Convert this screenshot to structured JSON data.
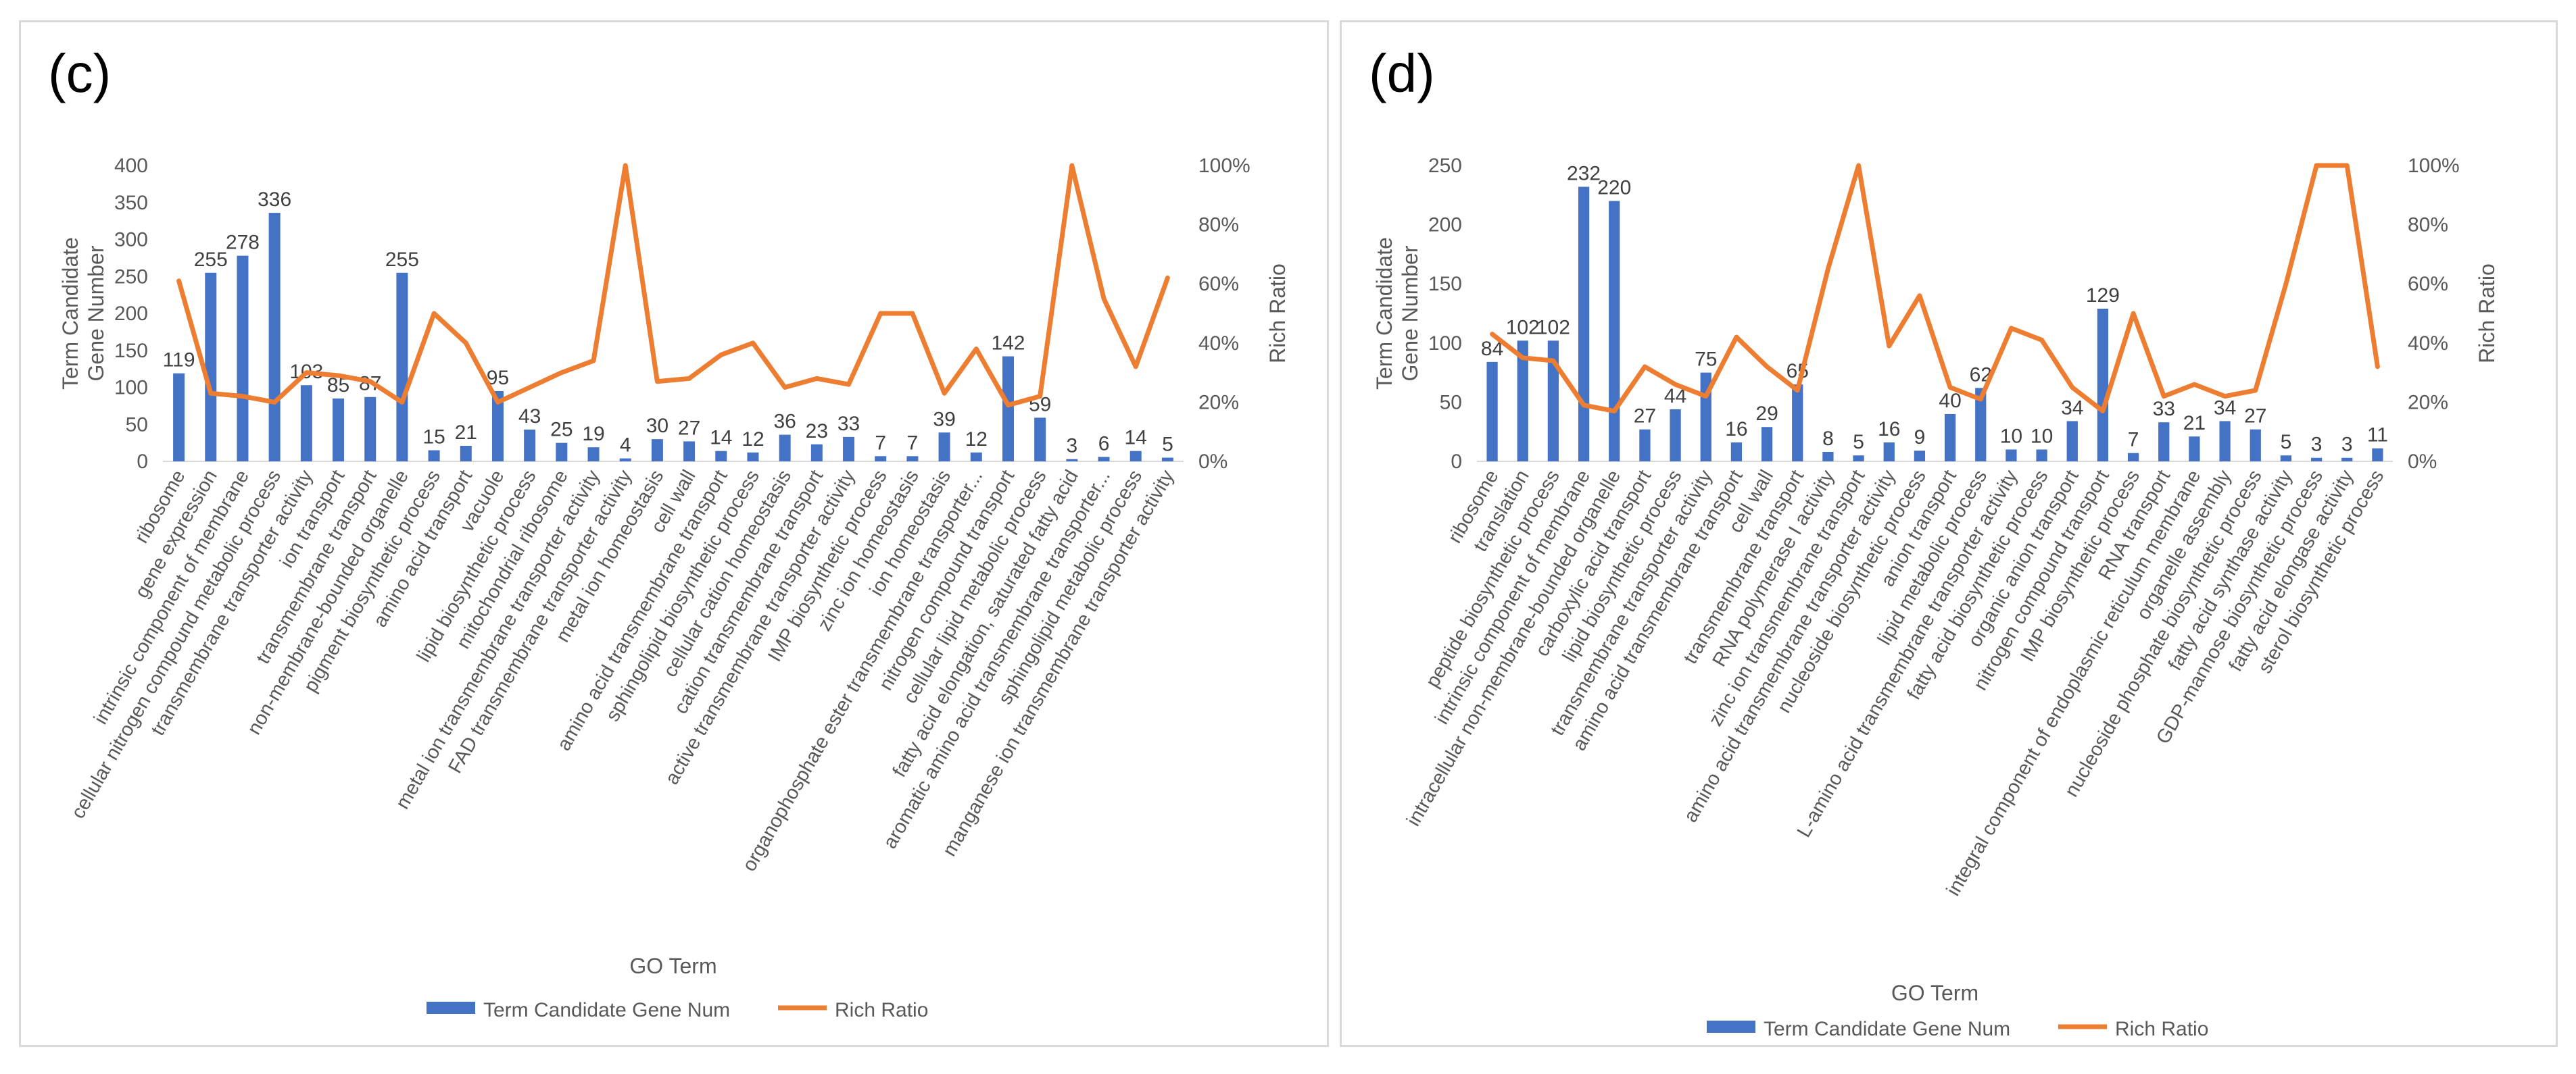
{
  "chart_data": [
    {
      "type": "bar",
      "panel_label": "(c)",
      "categories": [
        "ribosome",
        "gene expression",
        "intrinsic component of membrane",
        "cellular nitrogen compound metabolic process",
        "transmembrane transporter activity",
        "ion transport",
        "transmembrane transport",
        "non-membrane-bounded organelle",
        "pigment biosynthetic process",
        "amino acid transport",
        "vacuole",
        "lipid biosynthetic process",
        "mitochondrial ribosome",
        "metal ion transmembrane transporter activity",
        "FAD transmembrane transporter activity",
        "metal ion homeostasis",
        "cell wall",
        "amino acid transmembrane transport",
        "sphingolipid biosynthetic process",
        "cellular cation homeostasis",
        "cation transmembrane transport",
        "active transmembrane transporter activity",
        "IMP biosynthetic process",
        "zinc ion homeostasis",
        "ion homeostasis",
        "organophosphate ester transmembrane transporter...",
        "nitrogen compound transport",
        "cellular lipid metabolic process",
        "fatty acid elongation, saturated fatty acid",
        "aromatic amino acid transmembrane transporter...",
        "sphingolipid metabolic process",
        "manganese ion transmembrane transporter activity"
      ],
      "series": [
        {
          "name": "Term Candidate Gene Num",
          "axis": "left",
          "color": "#4472c4",
          "values": [
            119,
            255,
            278,
            336,
            103,
            85,
            87,
            255,
            15,
            21,
            95,
            43,
            25,
            19,
            4,
            30,
            27,
            14,
            12,
            36,
            23,
            33,
            7,
            7,
            39,
            12,
            142,
            59,
            3,
            6,
            14,
            5
          ]
        },
        {
          "name": "Rich Ratio",
          "axis": "right",
          "color": "#ed7d31",
          "values": [
            0.61,
            0.23,
            0.22,
            0.2,
            0.3,
            0.29,
            0.27,
            0.2,
            0.5,
            0.4,
            0.2,
            0.25,
            0.3,
            0.34,
            1.0,
            0.27,
            0.28,
            0.36,
            0.4,
            0.25,
            0.28,
            0.26,
            0.5,
            0.5,
            0.23,
            0.38,
            0.19,
            0.22,
            1.0,
            0.55,
            0.32,
            0.62
          ]
        }
      ],
      "xlabel": "GO Term",
      "ylabel": "Term Candidate Gene Number",
      "ylabel2": "Rich Ratio",
      "ylim": [
        0,
        400
      ],
      "y_ticks": [
        "0",
        "50",
        "100",
        "150",
        "200",
        "250",
        "300",
        "350",
        "400"
      ],
      "y2lim": [
        0,
        1
      ],
      "y2_ticks": [
        "0%",
        "20%",
        "40%",
        "60%",
        "80%",
        "100%"
      ],
      "legend": [
        "Term Candidate Gene Num",
        "Rich Ratio"
      ],
      "legend_position": "bottom"
    },
    {
      "type": "bar",
      "panel_label": "(d)",
      "categories": [
        "ribosome",
        "translation",
        "peptide biosynthetic process",
        "intrinsic component of membrane",
        "intracellular non-membrane-bounded organelle",
        "carboxylic acid transport",
        "lipid biosynthetic process",
        "transmembrane transporter activity",
        "amino acid transmembrane transport",
        "cell wall",
        "transmembrane transport",
        "RNA polymerase I activity",
        "zinc ion transmembrane transport",
        "amino acid transmembrane transporter activity",
        "nucleoside biosynthetic process",
        "anion transport",
        "lipid metabolic process",
        "L-amino acid transmembrane transporter activity",
        "fatty acid biosynthetic process",
        "organic anion transport",
        "nitrogen compound transport",
        "IMP biosynthetic process",
        "RNA transport",
        "integral component of endoplasmic reticulum membrane",
        "organelle assembly",
        "nucleoside phosphate biosynthetic process",
        "fatty acid synthase activity",
        "GDP-mannose biosynthetic process",
        "fatty acid elongase activity",
        "sterol biosynthetic process"
      ],
      "series": [
        {
          "name": "Term Candidate Gene Num",
          "axis": "left",
          "color": "#4472c4",
          "values": [
            84,
            102,
            102,
            232,
            220,
            27,
            44,
            75,
            16,
            29,
            65,
            8,
            5,
            16,
            9,
            40,
            62,
            10,
            10,
            34,
            129,
            7,
            33,
            21,
            34,
            27,
            5,
            3,
            3,
            11
          ]
        },
        {
          "name": "Rich Ratio",
          "axis": "right",
          "color": "#ed7d31",
          "values": [
            0.43,
            0.35,
            0.34,
            0.19,
            0.17,
            0.32,
            0.26,
            0.22,
            0.42,
            0.32,
            0.24,
            0.65,
            1.0,
            0.39,
            0.56,
            0.25,
            0.21,
            0.45,
            0.41,
            0.25,
            0.17,
            0.5,
            0.22,
            0.26,
            0.22,
            0.24,
            0.6,
            1.0,
            1.0,
            0.32
          ]
        }
      ],
      "xlabel": "GO Term",
      "ylabel": "Term Candidate Gene Number",
      "ylabel2": "Rich Ratio",
      "ylim": [
        0,
        250
      ],
      "y_ticks": [
        "0",
        "50",
        "100",
        "150",
        "200",
        "250"
      ],
      "y2lim": [
        0,
        1
      ],
      "y2_ticks": [
        "0%",
        "20%",
        "40%",
        "60%",
        "80%",
        "100%"
      ],
      "legend": [
        "Term Candidate Gene Num",
        "Rich Ratio"
      ],
      "legend_position": "bottom"
    }
  ]
}
